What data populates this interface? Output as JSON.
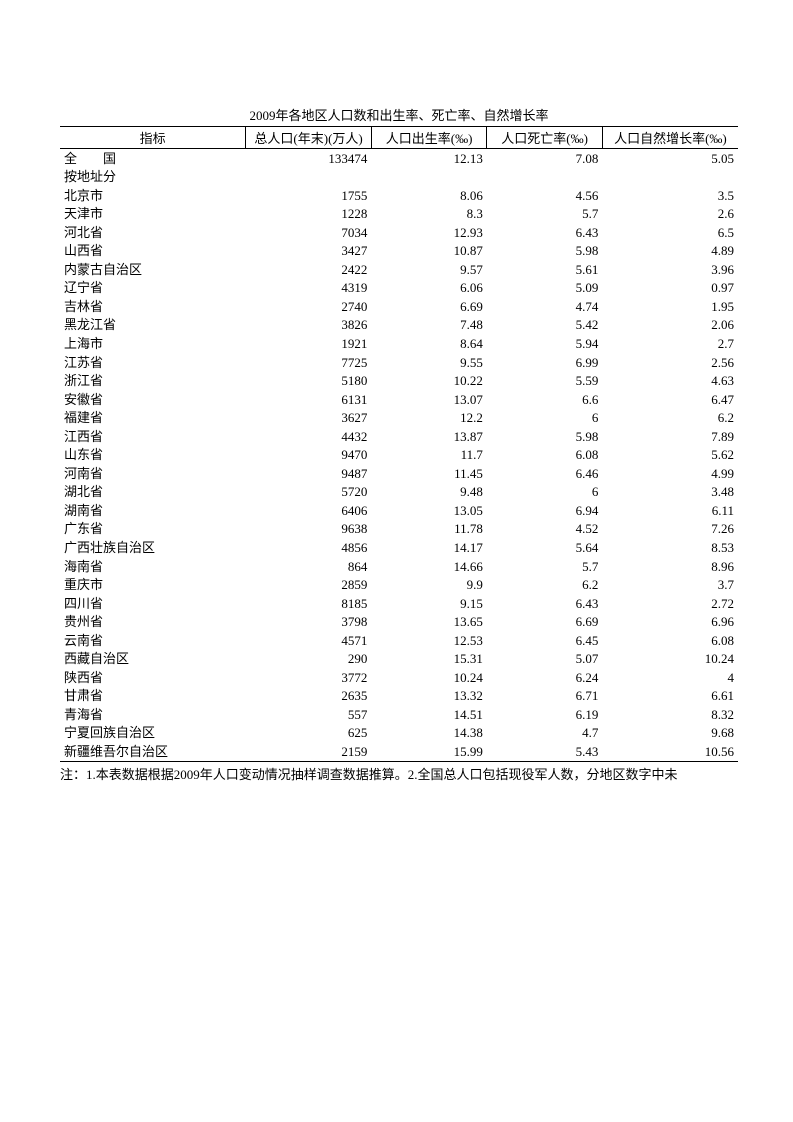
{
  "title": "2009年各地区人口数和出生率、死亡率、自然增长率",
  "columns": {
    "indicator": "指标",
    "population": "总人口(年末)(万人)",
    "birth_rate": "人口出生率(‰)",
    "death_rate": "人口死亡率(‰)",
    "growth_rate": "人口自然增长率(‰)"
  },
  "national": {
    "label": "全　　国",
    "population": "133474",
    "birth_rate": "12.13",
    "death_rate": "7.08",
    "growth_rate": "5.05"
  },
  "section_label": "按地址分",
  "rows": [
    {
      "region": "北京市",
      "population": "1755",
      "birth_rate": "8.06",
      "death_rate": "4.56",
      "growth_rate": "3.5"
    },
    {
      "region": "天津市",
      "population": "1228",
      "birth_rate": "8.3",
      "death_rate": "5.7",
      "growth_rate": "2.6"
    },
    {
      "region": "河北省",
      "population": "7034",
      "birth_rate": "12.93",
      "death_rate": "6.43",
      "growth_rate": "6.5"
    },
    {
      "region": "山西省",
      "population": "3427",
      "birth_rate": "10.87",
      "death_rate": "5.98",
      "growth_rate": "4.89"
    },
    {
      "region": "内蒙古自治区",
      "population": "2422",
      "birth_rate": "9.57",
      "death_rate": "5.61",
      "growth_rate": "3.96"
    },
    {
      "region": "辽宁省",
      "population": "4319",
      "birth_rate": "6.06",
      "death_rate": "5.09",
      "growth_rate": "0.97"
    },
    {
      "region": "吉林省",
      "population": "2740",
      "birth_rate": "6.69",
      "death_rate": "4.74",
      "growth_rate": "1.95"
    },
    {
      "region": "黑龙江省",
      "population": "3826",
      "birth_rate": "7.48",
      "death_rate": "5.42",
      "growth_rate": "2.06"
    },
    {
      "region": "上海市",
      "population": "1921",
      "birth_rate": "8.64",
      "death_rate": "5.94",
      "growth_rate": "2.7"
    },
    {
      "region": "江苏省",
      "population": "7725",
      "birth_rate": "9.55",
      "death_rate": "6.99",
      "growth_rate": "2.56"
    },
    {
      "region": "浙江省",
      "population": "5180",
      "birth_rate": "10.22",
      "death_rate": "5.59",
      "growth_rate": "4.63"
    },
    {
      "region": "安徽省",
      "population": "6131",
      "birth_rate": "13.07",
      "death_rate": "6.6",
      "growth_rate": "6.47"
    },
    {
      "region": "福建省",
      "population": "3627",
      "birth_rate": "12.2",
      "death_rate": "6",
      "growth_rate": "6.2"
    },
    {
      "region": "江西省",
      "population": "4432",
      "birth_rate": "13.87",
      "death_rate": "5.98",
      "growth_rate": "7.89"
    },
    {
      "region": "山东省",
      "population": "9470",
      "birth_rate": "11.7",
      "death_rate": "6.08",
      "growth_rate": "5.62"
    },
    {
      "region": "河南省",
      "population": "9487",
      "birth_rate": "11.45",
      "death_rate": "6.46",
      "growth_rate": "4.99"
    },
    {
      "region": "湖北省",
      "population": "5720",
      "birth_rate": "9.48",
      "death_rate": "6",
      "growth_rate": "3.48"
    },
    {
      "region": "湖南省",
      "population": "6406",
      "birth_rate": "13.05",
      "death_rate": "6.94",
      "growth_rate": "6.11"
    },
    {
      "region": "广东省",
      "population": "9638",
      "birth_rate": "11.78",
      "death_rate": "4.52",
      "growth_rate": "7.26"
    },
    {
      "region": "广西壮族自治区",
      "population": "4856",
      "birth_rate": "14.17",
      "death_rate": "5.64",
      "growth_rate": "8.53"
    },
    {
      "region": "海南省",
      "population": "864",
      "birth_rate": "14.66",
      "death_rate": "5.7",
      "growth_rate": "8.96"
    },
    {
      "region": "重庆市",
      "population": "2859",
      "birth_rate": "9.9",
      "death_rate": "6.2",
      "growth_rate": "3.7"
    },
    {
      "region": "四川省",
      "population": "8185",
      "birth_rate": "9.15",
      "death_rate": "6.43",
      "growth_rate": "2.72"
    },
    {
      "region": "贵州省",
      "population": "3798",
      "birth_rate": "13.65",
      "death_rate": "6.69",
      "growth_rate": "6.96"
    },
    {
      "region": "云南省",
      "population": "4571",
      "birth_rate": "12.53",
      "death_rate": "6.45",
      "growth_rate": "6.08"
    },
    {
      "region": "西藏自治区",
      "population": "290",
      "birth_rate": "15.31",
      "death_rate": "5.07",
      "growth_rate": "10.24"
    },
    {
      "region": "陕西省",
      "population": "3772",
      "birth_rate": "10.24",
      "death_rate": "6.24",
      "growth_rate": "4"
    },
    {
      "region": "甘肃省",
      "population": "2635",
      "birth_rate": "13.32",
      "death_rate": "6.71",
      "growth_rate": "6.61"
    },
    {
      "region": "青海省",
      "population": "557",
      "birth_rate": "14.51",
      "death_rate": "6.19",
      "growth_rate": "8.32"
    },
    {
      "region": "宁夏回族自治区",
      "population": "625",
      "birth_rate": "14.38",
      "death_rate": "4.7",
      "growth_rate": "9.68"
    },
    {
      "region": "新疆维吾尔自治区",
      "population": "2159",
      "birth_rate": "15.99",
      "death_rate": "5.43",
      "growth_rate": "10.56"
    }
  ],
  "footnote": "注：1.本表数据根据2009年人口变动情况抽样调查数据推算。2.全国总人口包括现役军人数，分地区数字中未"
}
